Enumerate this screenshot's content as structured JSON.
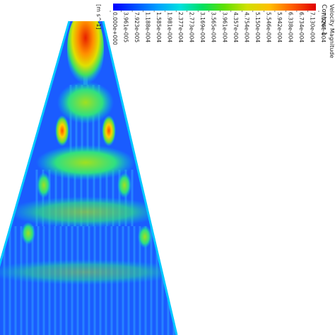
{
  "legend": {
    "title": "Contour 1",
    "subtitle": "Velocity Magnitude",
    "unit": "[m s^-1]",
    "tick_labels": [
      "0.000e+000",
      "3.961e-005",
      "7.923e-005",
      "1.188e-004",
      "1.585e-004",
      "1.981e-004",
      "2.377e-004",
      "2.773e-004",
      "3.169e-004",
      "3.565e-004",
      "3.961e-004",
      "4.357e-004",
      "4.754e-004",
      "5.150e-004",
      "5.546e-004",
      "5.942e-004",
      "6.338e-004",
      "6.734e-004",
      "7.130e-004",
      "7.526e-004"
    ],
    "colors": [
      "#0000ff",
      "#0050ff",
      "#00a0ff",
      "#00e0e0",
      "#00e060",
      "#60e000",
      "#d0e000",
      "#ffc000",
      "#ff6000",
      "#e00000"
    ]
  },
  "contour": {
    "background_color": "#1a5cff",
    "channel_color": "#2a8cff",
    "edge_color": "#00c8ff",
    "hot_color": "#e82000"
  }
}
